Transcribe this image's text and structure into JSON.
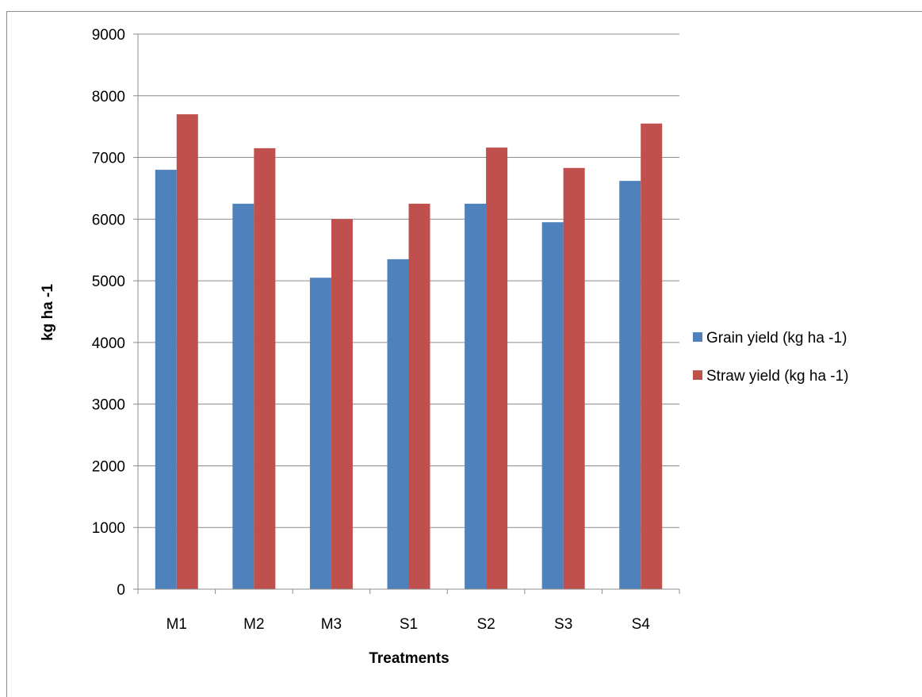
{
  "chart_data": {
    "type": "bar",
    "title": "",
    "xlabel": "Treatments",
    "ylabel": "kg ha -1",
    "categories": [
      "M1",
      "M2",
      "M3",
      "S1",
      "S2",
      "S3",
      "S4"
    ],
    "series": [
      {
        "name": "Grain yield (kg ha -1)",
        "color": "#4F81BD",
        "values": [
          6800,
          6250,
          5050,
          5350,
          6250,
          5950,
          6620
        ]
      },
      {
        "name": "Straw yield (kg ha -1)",
        "color": "#C0504D",
        "values": [
          7700,
          7150,
          6000,
          6250,
          7160,
          6830,
          7550
        ]
      }
    ],
    "ylim": [
      0,
      9000
    ],
    "yticks": [
      0,
      1000,
      2000,
      3000,
      4000,
      5000,
      6000,
      7000,
      8000,
      9000
    ],
    "grid": true,
    "legend_position": "right"
  }
}
